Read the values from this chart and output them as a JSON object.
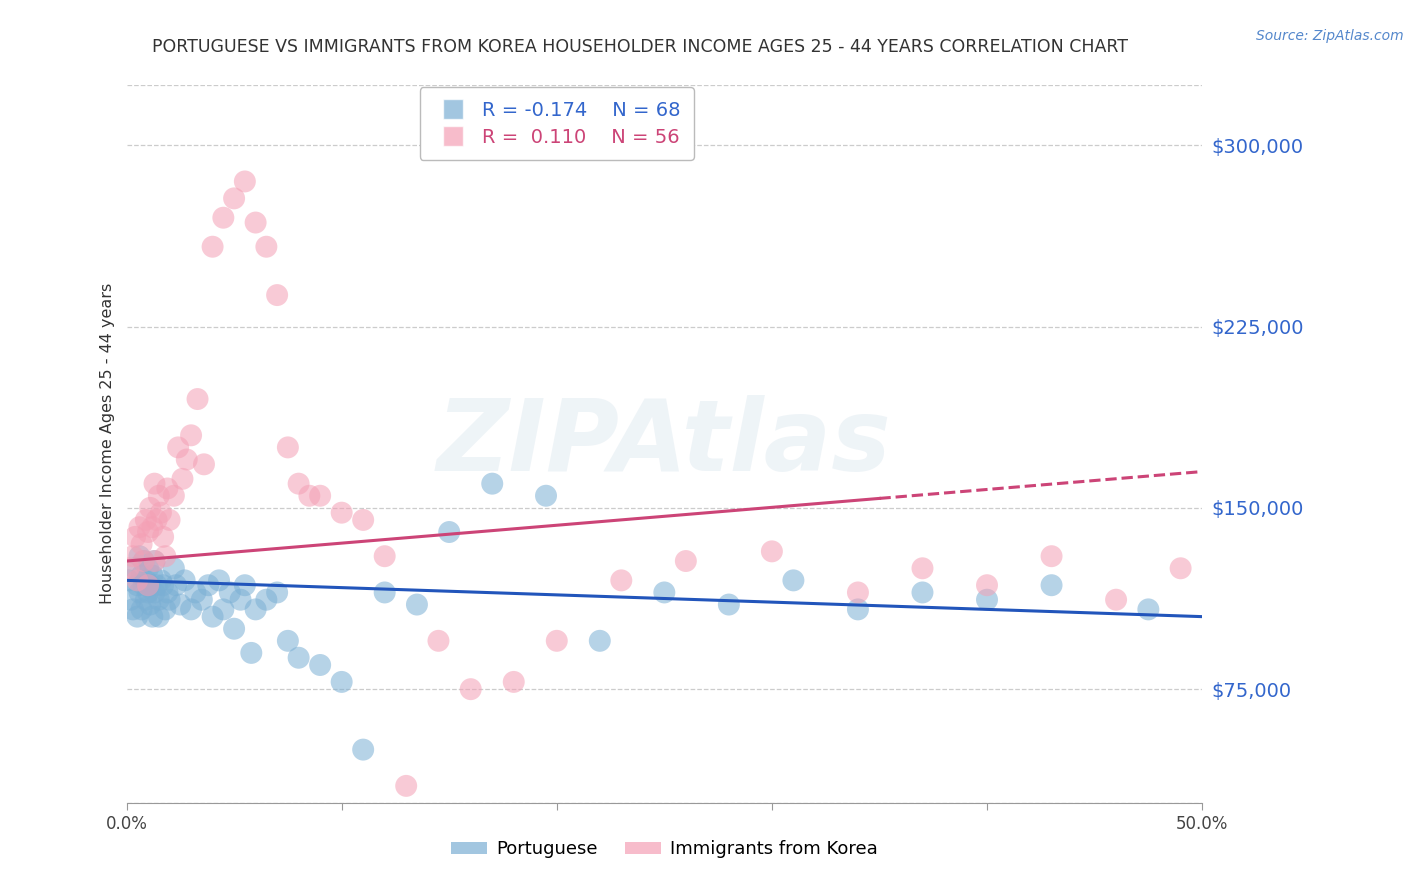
{
  "title": "PORTUGUESE VS IMMIGRANTS FROM KOREA HOUSEHOLDER INCOME AGES 25 - 44 YEARS CORRELATION CHART",
  "source": "Source: ZipAtlas.com",
  "ylabel": "Householder Income Ages 25 - 44 years",
  "y_ticks": [
    75000,
    150000,
    225000,
    300000
  ],
  "y_tick_labels": [
    "$75,000",
    "$150,000",
    "$225,000",
    "$300,000"
  ],
  "xlim": [
    0.0,
    0.5
  ],
  "ylim": [
    28000,
    325000
  ],
  "portuguese_color": "#7BAFD4",
  "korea_color": "#F4A0B5",
  "port_trend_color": "#2255BB",
  "korea_trend_color": "#CC4477",
  "portuguese_label": "Portuguese",
  "korea_label": "Immigrants from Korea",
  "legend_r_port": "-0.174",
  "legend_n_port": "68",
  "legend_r_korea": "0.110",
  "legend_n_korea": "56",
  "watermark": "ZIPAtlas",
  "portuguese_x": [
    0.001,
    0.002,
    0.003,
    0.004,
    0.005,
    0.005,
    0.006,
    0.006,
    0.007,
    0.007,
    0.008,
    0.008,
    0.009,
    0.009,
    0.01,
    0.01,
    0.011,
    0.011,
    0.012,
    0.012,
    0.013,
    0.013,
    0.014,
    0.015,
    0.015,
    0.016,
    0.017,
    0.018,
    0.019,
    0.02,
    0.022,
    0.023,
    0.025,
    0.027,
    0.03,
    0.032,
    0.035,
    0.038,
    0.04,
    0.043,
    0.045,
    0.048,
    0.05,
    0.053,
    0.055,
    0.058,
    0.06,
    0.065,
    0.07,
    0.075,
    0.08,
    0.09,
    0.1,
    0.11,
    0.12,
    0.135,
    0.15,
    0.17,
    0.195,
    0.22,
    0.25,
    0.28,
    0.31,
    0.34,
    0.37,
    0.4,
    0.43,
    0.475
  ],
  "portuguese_y": [
    120000,
    112000,
    108000,
    125000,
    118000,
    105000,
    130000,
    115000,
    122000,
    108000,
    118000,
    128000,
    112000,
    120000,
    115000,
    125000,
    110000,
    118000,
    105000,
    122000,
    115000,
    128000,
    118000,
    112000,
    105000,
    120000,
    118000,
    108000,
    115000,
    112000,
    125000,
    118000,
    110000,
    120000,
    108000,
    115000,
    112000,
    118000,
    105000,
    120000,
    108000,
    115000,
    100000,
    112000,
    118000,
    90000,
    108000,
    112000,
    115000,
    95000,
    88000,
    85000,
    78000,
    50000,
    115000,
    110000,
    140000,
    160000,
    155000,
    95000,
    115000,
    110000,
    120000,
    108000,
    115000,
    112000,
    118000,
    108000
  ],
  "korea_x": [
    0.001,
    0.003,
    0.004,
    0.005,
    0.006,
    0.007,
    0.008,
    0.009,
    0.01,
    0.01,
    0.011,
    0.012,
    0.013,
    0.013,
    0.014,
    0.015,
    0.016,
    0.017,
    0.018,
    0.019,
    0.02,
    0.022,
    0.024,
    0.026,
    0.028,
    0.03,
    0.033,
    0.036,
    0.04,
    0.045,
    0.05,
    0.055,
    0.06,
    0.065,
    0.07,
    0.075,
    0.08,
    0.085,
    0.09,
    0.1,
    0.11,
    0.12,
    0.13,
    0.145,
    0.16,
    0.18,
    0.2,
    0.23,
    0.26,
    0.3,
    0.34,
    0.37,
    0.4,
    0.43,
    0.46,
    0.49
  ],
  "korea_y": [
    125000,
    130000,
    138000,
    120000,
    142000,
    135000,
    128000,
    145000,
    118000,
    140000,
    150000,
    142000,
    160000,
    128000,
    145000,
    155000,
    148000,
    138000,
    130000,
    158000,
    145000,
    155000,
    175000,
    162000,
    170000,
    180000,
    195000,
    168000,
    258000,
    270000,
    278000,
    285000,
    268000,
    258000,
    238000,
    175000,
    160000,
    155000,
    155000,
    148000,
    145000,
    130000,
    35000,
    95000,
    75000,
    78000,
    95000,
    120000,
    128000,
    132000,
    115000,
    125000,
    118000,
    130000,
    112000,
    125000
  ]
}
